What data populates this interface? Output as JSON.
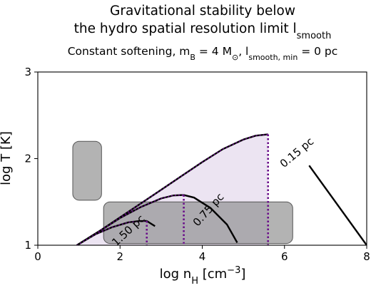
{
  "chart_data": {
    "type": "line",
    "title_line1": "Gravitational stability below",
    "title_line2_prefix": "the hydro spatial resolution limit l",
    "title_line2_sub": "smooth",
    "subtitle": {
      "prefix": "Constant softening, m",
      "mb_sub": "B",
      "mid": " = 4 M",
      "msun_sub": "⊙",
      "mid2": ", l",
      "lmin_sub": "smooth, min",
      "suffix": " = 0 pc"
    },
    "xlabel": {
      "prefix": "log n",
      "sub": "H",
      "mid": " [cm",
      "sup": "−3",
      "suffix": "]"
    },
    "ylabel": "log T [K]",
    "xlim": [
      0,
      8
    ],
    "ylim": [
      1,
      3
    ],
    "xticks": [
      "0",
      "2",
      "4",
      "6",
      "8"
    ],
    "yticks": [
      "1",
      "2",
      "3"
    ],
    "grid": false,
    "colors": {
      "curve": "#000000",
      "dotted": "#6a0f8a",
      "fill": "#e9dff0",
      "box_fill": "#8a8a8a",
      "box_stroke": "#555555"
    },
    "shaded_boxes": [
      {
        "x": [
          0.85,
          1.55
        ],
        "y": [
          1.52,
          2.2
        ]
      },
      {
        "x": [
          1.6,
          6.2
        ],
        "y": [
          1.02,
          1.5
        ]
      }
    ],
    "series": [
      {
        "label": "0.15 pc",
        "peak": [
          5.6,
          2.28
        ],
        "rising_x": [
          0.95,
          1.5,
          2.0,
          2.5,
          3.0,
          3.5,
          4.0,
          4.5,
          5.0,
          5.3,
          5.6
        ],
        "rising_y": [
          1.0,
          1.163,
          1.322,
          1.48,
          1.64,
          1.8,
          1.96,
          2.11,
          2.22,
          2.265,
          2.28
        ],
        "falling_x": [
          6.6,
          8.0
        ],
        "falling_y": [
          1.92,
          1.0
        ]
      },
      {
        "label": "0.75 pc",
        "peak": [
          3.55,
          1.58
        ],
        "rising_x": [
          0.95,
          1.5,
          2.0,
          2.5,
          3.0,
          3.3,
          3.55
        ],
        "rising_y": [
          1.0,
          1.163,
          1.314,
          1.44,
          1.54,
          1.575,
          1.58
        ],
        "falling_x": [
          3.55,
          3.8,
          4.2,
          4.6,
          4.85
        ],
        "falling_y": [
          1.58,
          1.55,
          1.43,
          1.24,
          1.03
        ]
      },
      {
        "label": "1.50 pc",
        "peak": [
          2.65,
          1.28
        ],
        "rising_x": [
          0.95,
          1.4,
          1.8,
          2.2,
          2.45,
          2.65
        ],
        "rising_y": [
          1.0,
          1.126,
          1.207,
          1.264,
          1.278,
          1.28
        ],
        "falling_x": [
          2.65,
          2.85
        ],
        "falling_y": [
          1.28,
          1.22
        ]
      }
    ]
  }
}
